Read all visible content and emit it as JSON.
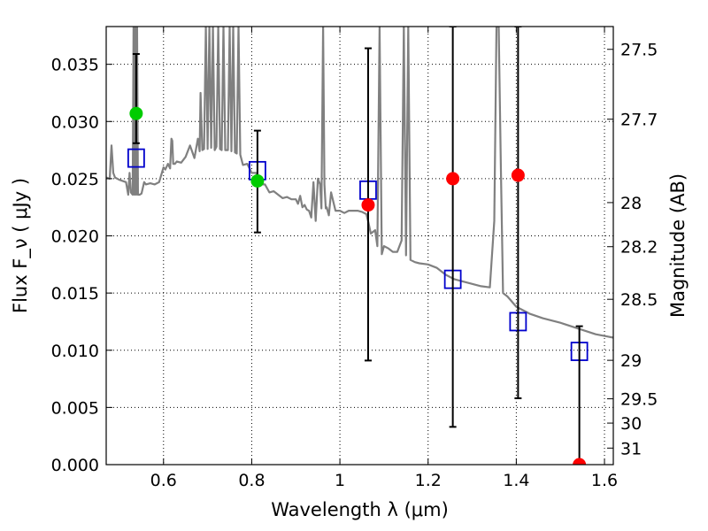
{
  "chart_data": {
    "type": "scatter",
    "xlabel": "Wavelength  λ (μm)",
    "ylabel": "Flux  F_ν  ( μJy )",
    "y2label": "Magnitude (AB)",
    "xlim": [
      0.47,
      1.62
    ],
    "ylim": [
      0.0,
      0.0383
    ],
    "x_ticks": [
      0.6,
      0.8,
      1.0,
      1.2,
      1.4,
      1.6
    ],
    "x_tick_labels": [
      "0.6",
      "0.8",
      "1",
      "1.2",
      "1.4",
      "1.6"
    ],
    "y_ticks": [
      0.0,
      0.005,
      0.01,
      0.015,
      0.02,
      0.025,
      0.03,
      0.035
    ],
    "y_tick_labels": [
      "0.000",
      "0.005",
      "0.010",
      "0.015",
      "0.020",
      "0.025",
      "0.030",
      "0.035"
    ],
    "mag_ticks": [
      27.5,
      27.7,
      28,
      28.2,
      28.5,
      29,
      29.5,
      30,
      31
    ],
    "mag_tick_labels": [
      "27.5",
      "27.7",
      "28",
      "28.2",
      "28.5",
      "29",
      "29.5",
      "30",
      "31"
    ],
    "grid": true,
    "series": [
      {
        "kind": "model_sed_line",
        "color": "#808080",
        "x": [
          0.47,
          0.478,
          0.482,
          0.486,
          0.49,
          0.5,
          0.515,
          0.52,
          0.523,
          0.526,
          0.53,
          0.532,
          0.534,
          0.536,
          0.538,
          0.54,
          0.542,
          0.546,
          0.55,
          0.556,
          0.56,
          0.57,
          0.58,
          0.59,
          0.6,
          0.604,
          0.61,
          0.615,
          0.618,
          0.62,
          0.622,
          0.626,
          0.63,
          0.64,
          0.65,
          0.66,
          0.67,
          0.678,
          0.682,
          0.684,
          0.688,
          0.692,
          0.696,
          0.7,
          0.704,
          0.708,
          0.712,
          0.716,
          0.72,
          0.724,
          0.728,
          0.732,
          0.736,
          0.74,
          0.746,
          0.75,
          0.754,
          0.758,
          0.762,
          0.766,
          0.77,
          0.774,
          0.78,
          0.79,
          0.8,
          0.81,
          0.82,
          0.83,
          0.84,
          0.85,
          0.86,
          0.87,
          0.88,
          0.89,
          0.9,
          0.905,
          0.91,
          0.915,
          0.92,
          0.925,
          0.93,
          0.935,
          0.94,
          0.945,
          0.95,
          0.955,
          0.958,
          0.962,
          0.965,
          0.968,
          0.97,
          0.975,
          0.98,
          0.99,
          1.0,
          1.01,
          1.02,
          1.03,
          1.04,
          1.05,
          1.06,
          1.065,
          1.07,
          1.08,
          1.085,
          1.09,
          1.095,
          1.1,
          1.11,
          1.12,
          1.13,
          1.14,
          1.145,
          1.15,
          1.155,
          1.16,
          1.17,
          1.18,
          1.2,
          1.22,
          1.24,
          1.26,
          1.28,
          1.3,
          1.32,
          1.34,
          1.35,
          1.355,
          1.36,
          1.365,
          1.37,
          1.38,
          1.4,
          1.43,
          1.46,
          1.5,
          1.54,
          1.58,
          1.62
        ],
        "y": [
          0.0251,
          0.025,
          0.0279,
          0.0255,
          0.0251,
          0.0249,
          0.0247,
          0.0236,
          0.0255,
          0.0238,
          0.0236,
          0.0383,
          0.0236,
          0.0383,
          0.0236,
          0.0383,
          0.0236,
          0.0236,
          0.0237,
          0.0247,
          0.0245,
          0.0246,
          0.0245,
          0.0247,
          0.026,
          0.0258,
          0.0263,
          0.0259,
          0.0285,
          0.0283,
          0.0263,
          0.0263,
          0.0265,
          0.0264,
          0.0269,
          0.0279,
          0.0268,
          0.0285,
          0.0274,
          0.0325,
          0.0275,
          0.0276,
          0.0383,
          0.0276,
          0.0383,
          0.0277,
          0.0383,
          0.0275,
          0.0278,
          0.0383,
          0.0276,
          0.0275,
          0.0383,
          0.0275,
          0.0275,
          0.0383,
          0.0274,
          0.0383,
          0.0273,
          0.0272,
          0.0383,
          0.0271,
          0.0262,
          0.0263,
          0.0255,
          0.0255,
          0.0245,
          0.0245,
          0.0238,
          0.0239,
          0.0236,
          0.0233,
          0.0234,
          0.0232,
          0.0232,
          0.0228,
          0.0235,
          0.0225,
          0.0227,
          0.0223,
          0.0222,
          0.0216,
          0.0247,
          0.0213,
          0.025,
          0.0245,
          0.0224,
          0.0383,
          0.0245,
          0.0224,
          0.0225,
          0.0218,
          0.0238,
          0.0222,
          0.0222,
          0.022,
          0.0222,
          0.0222,
          0.0222,
          0.0221,
          0.0219,
          0.0211,
          0.0202,
          0.0205,
          0.0191,
          0.0383,
          0.0184,
          0.0191,
          0.0189,
          0.0186,
          0.0186,
          0.0196,
          0.0383,
          0.0183,
          0.0383,
          0.0179,
          0.0177,
          0.0176,
          0.0175,
          0.0172,
          0.0166,
          0.0162,
          0.016,
          0.0158,
          0.0156,
          0.0155,
          0.0213,
          0.0383,
          0.0383,
          0.0262,
          0.015,
          0.0147,
          0.0138,
          0.0132,
          0.0128,
          0.0124,
          0.0119,
          0.0114,
          0.0111
        ]
      },
      {
        "kind": "model_photometry",
        "marker": "open-square",
        "color": "#0000cc",
        "x": [
          0.538,
          0.813,
          1.064,
          1.256,
          1.404,
          1.543
        ],
        "y": [
          0.0268,
          0.0257,
          0.024,
          0.0162,
          0.0125,
          0.0099
        ]
      },
      {
        "kind": "detection",
        "marker": "filled-circle",
        "color": "#00cc00",
        "x": [
          0.538,
          0.813
        ],
        "y": [
          0.0307,
          0.0248
        ],
        "yerr_low": [
          0.0281,
          0.0203
        ],
        "yerr_high": [
          0.0359,
          0.0292
        ]
      },
      {
        "kind": "upper_limit",
        "marker": "filled-circle",
        "color": "#ff0000",
        "x": [
          1.064,
          1.256,
          1.404,
          1.543
        ],
        "y": [
          0.0227,
          0.025,
          0.0253,
          0.0
        ],
        "yerr_low": [
          0.0091,
          0.0033,
          0.0058,
          0.0
        ],
        "yerr_high": [
          0.0364,
          0.0383,
          0.0383,
          0.0121
        ]
      }
    ]
  }
}
